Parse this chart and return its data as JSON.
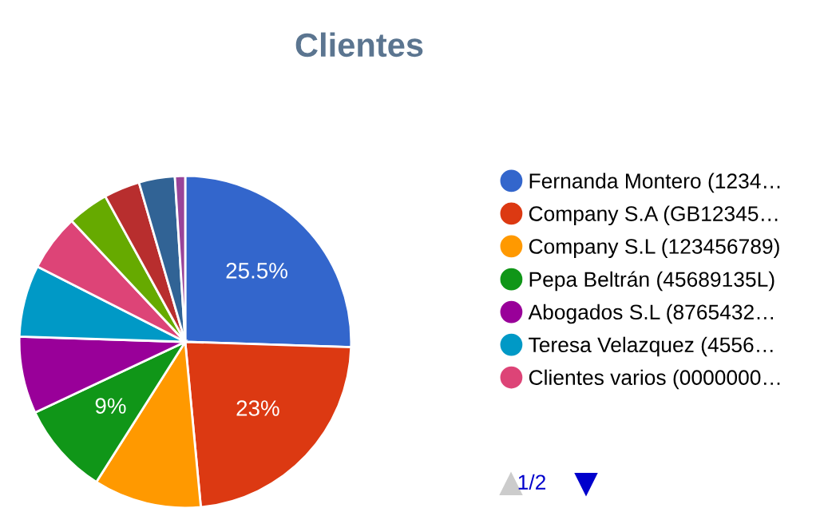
{
  "chart_data": {
    "type": "pie",
    "title": "Clientes",
    "categories": [
      "Fernanda Montero (1234…",
      "Company S.A (GB12345…",
      "Company S.L (123456789)",
      "Pepa Beltrán (45689135L)",
      "Abogados S.L (8765432…",
      "Teresa Velazquez (4556…",
      "Clientes varios (0000000…",
      null,
      null,
      null,
      null
    ],
    "values": [
      25.5,
      23,
      10.5,
      9,
      7.5,
      7,
      5.5,
      4,
      3.5,
      3.5,
      1
    ],
    "colors": [
      "#3366cc",
      "#dc3912",
      "#ff9900",
      "#109618",
      "#990099",
      "#0099c6",
      "#dd4477",
      "#66aa00",
      "#b82e2e",
      "#316395",
      "#994499"
    ],
    "value_labels": [
      "25.5%",
      "23%",
      null,
      "9%",
      null,
      null,
      null,
      null,
      null,
      null,
      null
    ],
    "legend": "right",
    "annotations": [
      "1/2"
    ]
  }
}
